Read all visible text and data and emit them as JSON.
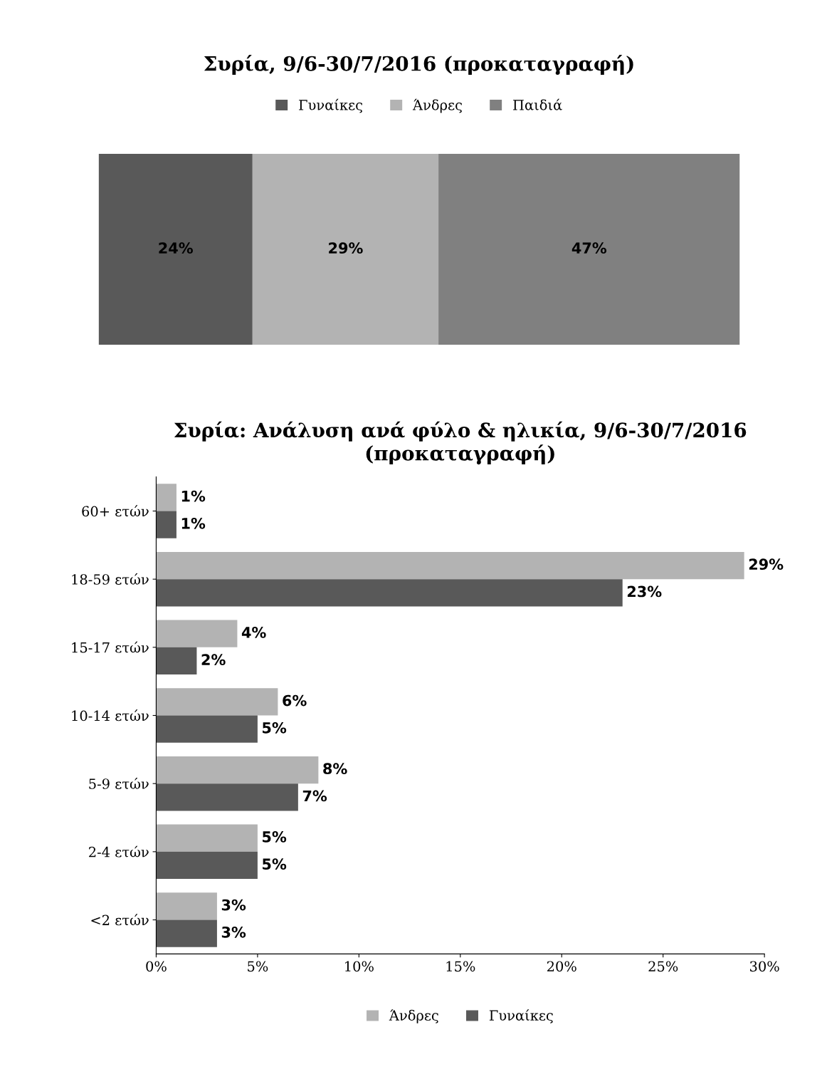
{
  "chart_data": [
    {
      "type": "bar",
      "title": "Συρία, 9/6-30/7/2016 (προκαταγραφή)",
      "orientation": "horizontal",
      "stacked": true,
      "categories": [
        null
      ],
      "tick_labels": false,
      "legend": "top",
      "grid": false,
      "series": [
        {
          "name": "Γυναίκες",
          "color": "#595959",
          "values": [
            24
          ],
          "value_labels": [
            "24%"
          ]
        },
        {
          "name": "Άνδρες",
          "color": "#b3b3b3",
          "values": [
            29
          ],
          "value_labels": [
            "29%"
          ]
        },
        {
          "name": "Παιδιά",
          "color": "#808080",
          "values": [
            47
          ],
          "value_labels": [
            "47%"
          ]
        }
      ]
    },
    {
      "type": "bar",
      "title": "Συρία: Ανάλυση ανά φύλο & ηλικία, 9/6-30/7/2016 (προκαταγραφή)",
      "orientation": "horizontal",
      "categories": [
        "60+ ετών",
        "18-59 ετών",
        "15-17 ετών",
        "10-14 ετών",
        "5-9 ετών",
        "2-4 ετών",
        "<2 ετών"
      ],
      "xlim": [
        0,
        30
      ],
      "xticks": [
        {
          "value": 0,
          "label": "0%"
        },
        {
          "value": 5,
          "label": "5%"
        },
        {
          "value": 10,
          "label": "10%"
        },
        {
          "value": 15,
          "label": "15%"
        },
        {
          "value": 20,
          "label": "20%"
        },
        {
          "value": 25,
          "label": "25%"
        },
        {
          "value": 30,
          "label": "30%"
        }
      ],
      "legend": "bottom",
      "grid": false,
      "series": [
        {
          "name": "Άνδρες",
          "color": "#b3b3b3",
          "values": [
            1,
            29,
            4,
            6,
            8,
            5,
            3
          ],
          "value_labels": [
            "1%",
            "29%",
            "4%",
            "6%",
            "8%",
            "5%",
            "3%"
          ]
        },
        {
          "name": "Γυναίκες",
          "color": "#595959",
          "values": [
            1,
            23,
            2,
            5,
            7,
            5,
            3
          ],
          "value_labels": [
            "1%",
            "23%",
            "2%",
            "5%",
            "7%",
            "5%",
            "3%"
          ]
        }
      ]
    }
  ]
}
